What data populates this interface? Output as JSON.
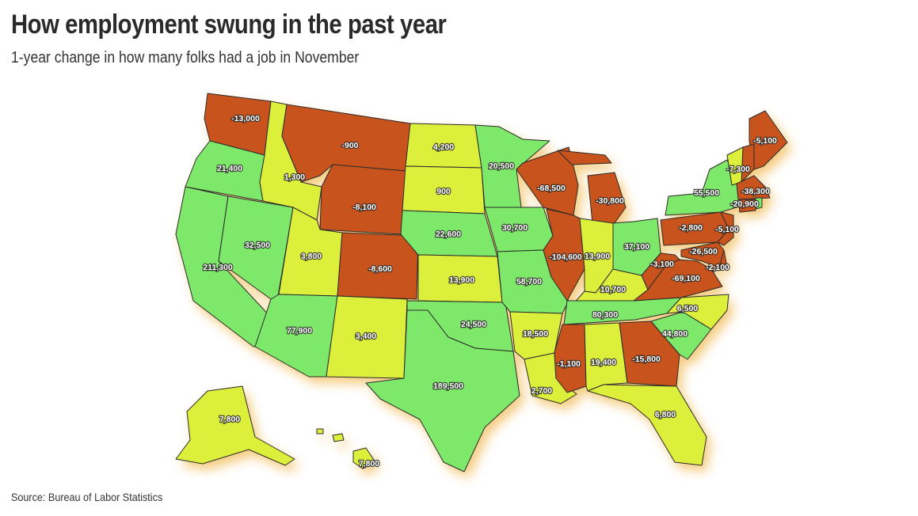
{
  "header": {
    "title": "How employment swung in the past year",
    "subtitle": "1-year change in how many folks had a job in November"
  },
  "footer": {
    "source": "Source: Bureau of Labor Statistics"
  },
  "colors": {
    "gain": "#7ee86a",
    "small_gain": "#dcef3a",
    "loss": "#c8531c",
    "shadow": "#f3c267",
    "border": "#2b2b2b"
  },
  "legend_categories": [
    "gain",
    "small_gain",
    "loss"
  ],
  "states": [
    {
      "id": "WA",
      "value": "-13,000",
      "category": "loss"
    },
    {
      "id": "OR",
      "value": "21,400",
      "category": "gain"
    },
    {
      "id": "CA",
      "value": "211,300",
      "category": "gain"
    },
    {
      "id": "NV",
      "value": "32,500",
      "category": "gain"
    },
    {
      "id": "ID",
      "value": "1,300",
      "category": "small_gain"
    },
    {
      "id": "MT",
      "value": "-900",
      "category": "loss"
    },
    {
      "id": "WY",
      "value": "-8,100",
      "category": "loss"
    },
    {
      "id": "UT",
      "value": "3,800",
      "category": "small_gain"
    },
    {
      "id": "AZ",
      "value": "77,900",
      "category": "gain"
    },
    {
      "id": "CO",
      "value": "-8,600",
      "category": "loss"
    },
    {
      "id": "NM",
      "value": "3,400",
      "category": "small_gain"
    },
    {
      "id": "ND",
      "value": "4,200",
      "category": "small_gain"
    },
    {
      "id": "SD",
      "value": "900",
      "category": "small_gain"
    },
    {
      "id": "NE",
      "value": "22,600",
      "category": "gain"
    },
    {
      "id": "KS",
      "value": "13,900",
      "category": "small_gain"
    },
    {
      "id": "OK",
      "value": "24,500",
      "category": "gain"
    },
    {
      "id": "TX",
      "value": "189,500",
      "category": "gain"
    },
    {
      "id": "MN",
      "value": "20,500",
      "category": "gain"
    },
    {
      "id": "IA",
      "value": "30,700",
      "category": "gain"
    },
    {
      "id": "MO",
      "value": "58,700",
      "category": "gain"
    },
    {
      "id": "AR",
      "value": "18,500",
      "category": "small_gain"
    },
    {
      "id": "LA",
      "value": "2,700",
      "category": "small_gain"
    },
    {
      "id": "WI",
      "value": "-68,500",
      "category": "loss"
    },
    {
      "id": "MI",
      "value": "-30,800",
      "category": "loss"
    },
    {
      "id": "IL",
      "value": "-104,600",
      "category": "loss"
    },
    {
      "id": "IN",
      "value": "13,900",
      "category": "small_gain"
    },
    {
      "id": "OH",
      "value": "37,100",
      "category": "gain"
    },
    {
      "id": "KY",
      "value": "10,700",
      "category": "small_gain"
    },
    {
      "id": "TN",
      "value": "80,300",
      "category": "gain"
    },
    {
      "id": "MS",
      "value": "-1,100",
      "category": "loss"
    },
    {
      "id": "AL",
      "value": "19,400",
      "category": "small_gain"
    },
    {
      "id": "GA",
      "value": "-15,800",
      "category": "loss"
    },
    {
      "id": "FL",
      "value": "6,800",
      "category": "small_gain"
    },
    {
      "id": "SC",
      "value": "44,800",
      "category": "gain"
    },
    {
      "id": "NC",
      "value": "6,500",
      "category": "small_gain"
    },
    {
      "id": "VA",
      "value": "-69,100",
      "category": "loss"
    },
    {
      "id": "WV",
      "value": "-3,100",
      "category": "loss"
    },
    {
      "id": "PA",
      "value": "-2,800",
      "category": "loss"
    },
    {
      "id": "NY",
      "value": "55,500",
      "category": "gain"
    },
    {
      "id": "ME",
      "value": "-5,100",
      "category": "loss"
    },
    {
      "id": "NH",
      "value": "-7,300",
      "category": "loss"
    },
    {
      "id": "VT",
      "value": "",
      "category": "small_gain"
    },
    {
      "id": "MA",
      "value": "-38,300",
      "category": "loss"
    },
    {
      "id": "CT",
      "value": "-20,900",
      "category": "loss"
    },
    {
      "id": "RI",
      "value": "",
      "category": "gain"
    },
    {
      "id": "NJ",
      "value": "-5,100",
      "category": "loss"
    },
    {
      "id": "DE",
      "value": "-2,100",
      "category": "loss"
    },
    {
      "id": "MD",
      "value": "-26,500",
      "category": "loss"
    },
    {
      "id": "AK",
      "value": "7,800",
      "category": "small_gain"
    },
    {
      "id": "HI",
      "value": "7,800",
      "category": "small_gain"
    }
  ]
}
